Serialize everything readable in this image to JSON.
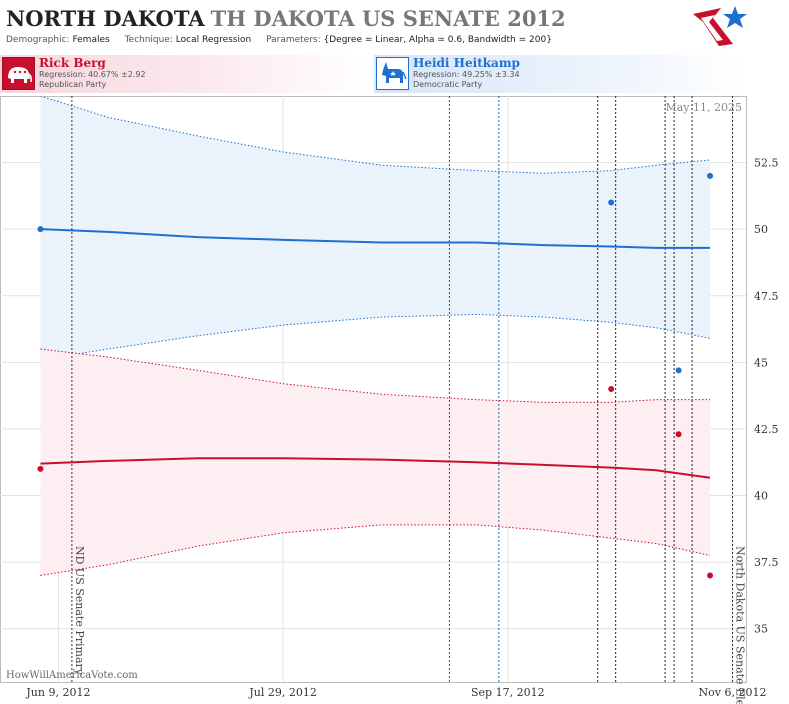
{
  "header": {
    "title_main": "NORTH DAKOTA",
    "title_sub": "TH DAKOTA US SENATE 2012",
    "demographic_label": "Demographic:",
    "demographic_value": "Females",
    "technique_label": "Technique:",
    "technique_value": "Local Regression",
    "parameters_label": "Parameters:",
    "parameters_value": "{Degree = Linear, Alpha = 0.6, Bandwidth = 200}"
  },
  "candidates": [
    {
      "name": "Rick Berg",
      "regression": "Regression: 40.67% ±2.92",
      "party": "Republican Party",
      "color": "#c8102e"
    },
    {
      "name": "Heidi Heitkamp",
      "regression": "Regression: 49.25% ±3.34",
      "party": "Democratic Party",
      "color": "#1e6fd0"
    }
  ],
  "watermark": "HowWillAmericaVote.com",
  "date_stamp": "May 11, 2025",
  "chart_data": {
    "type": "line",
    "x_axis": {
      "type": "date",
      "range": [
        "2012-05-27",
        "2012-11-09"
      ],
      "ticks": [
        {
          "value": "2012-06-09",
          "label": "Jun 9, 2012"
        },
        {
          "value": "2012-07-29",
          "label": "Jul 29, 2012"
        },
        {
          "value": "2012-09-17",
          "label": "Sep 17, 2012"
        },
        {
          "value": "2012-11-06",
          "label": "Nov 6, 2012"
        }
      ]
    },
    "y_axis": {
      "range": [
        33,
        55
      ],
      "ticks": [
        35,
        37.5,
        40,
        42.5,
        45,
        47.5,
        50,
        52.5
      ],
      "tick_labels": [
        "35",
        "37.5",
        "40",
        "42.5",
        "45",
        "47.5",
        "50",
        "52.5"
      ],
      "position": "right"
    },
    "grid": true,
    "events": [
      {
        "date": "2012-06-12",
        "label": "ND US Senate Primary"
      },
      {
        "date": "2012-11-06",
        "label": "North Dakota US Senate Election"
      }
    ],
    "poll_lines": [
      {
        "date": "2012-09-04",
        "color": "#b01848"
      },
      {
        "date": "2012-09-15",
        "color": "#1e6fa0"
      },
      {
        "date": "2012-10-07",
        "color": "#222222"
      },
      {
        "date": "2012-10-11",
        "color": "#222222"
      },
      {
        "date": "2012-10-22",
        "color": "#222222"
      },
      {
        "date": "2012-10-24",
        "color": "#222222"
      },
      {
        "date": "2012-10-28",
        "color": "#222222"
      }
    ],
    "series": [
      {
        "name": "Heidi Heitkamp",
        "color": "#1e6fd0",
        "band_fill": "#eaf2fc",
        "points": [
          {
            "x": "2012-06-05",
            "y": 50.0
          },
          {
            "x": "2012-10-10",
            "y": 51.0
          },
          {
            "x": "2012-10-25",
            "y": 44.7
          },
          {
            "x": "2012-11-01",
            "y": 52.0
          }
        ],
        "trend": [
          {
            "x": "2012-06-05",
            "y": 50.0,
            "lo": 45.1,
            "hi": 55.0
          },
          {
            "x": "2012-06-20",
            "y": 49.9,
            "lo": 45.5,
            "hi": 54.2
          },
          {
            "x": "2012-07-10",
            "y": 49.7,
            "lo": 46.0,
            "hi": 53.5
          },
          {
            "x": "2012-07-29",
            "y": 49.6,
            "lo": 46.4,
            "hi": 52.9
          },
          {
            "x": "2012-08-20",
            "y": 49.5,
            "lo": 46.7,
            "hi": 52.4
          },
          {
            "x": "2012-09-10",
            "y": 49.5,
            "lo": 46.8,
            "hi": 52.2
          },
          {
            "x": "2012-09-25",
            "y": 49.4,
            "lo": 46.7,
            "hi": 52.1
          },
          {
            "x": "2012-10-10",
            "y": 49.35,
            "lo": 46.5,
            "hi": 52.2
          },
          {
            "x": "2012-10-20",
            "y": 49.3,
            "lo": 46.3,
            "hi": 52.4
          },
          {
            "x": "2012-11-01",
            "y": 49.3,
            "lo": 45.9,
            "hi": 52.6
          }
        ]
      },
      {
        "name": "Rick Berg",
        "color": "#c8102e",
        "band_fill": "#fdeef1",
        "points": [
          {
            "x": "2012-06-05",
            "y": 41.0
          },
          {
            "x": "2012-10-10",
            "y": 44.0
          },
          {
            "x": "2012-10-25",
            "y": 42.3
          },
          {
            "x": "2012-11-01",
            "y": 37.0
          }
        ],
        "trend": [
          {
            "x": "2012-06-05",
            "y": 41.2,
            "lo": 37.0,
            "hi": 45.5
          },
          {
            "x": "2012-06-20",
            "y": 41.3,
            "lo": 37.4,
            "hi": 45.2
          },
          {
            "x": "2012-07-10",
            "y": 41.4,
            "lo": 38.1,
            "hi": 44.7
          },
          {
            "x": "2012-07-29",
            "y": 41.4,
            "lo": 38.6,
            "hi": 44.2
          },
          {
            "x": "2012-08-20",
            "y": 41.35,
            "lo": 38.9,
            "hi": 43.8
          },
          {
            "x": "2012-09-10",
            "y": 41.25,
            "lo": 38.9,
            "hi": 43.6
          },
          {
            "x": "2012-09-25",
            "y": 41.15,
            "lo": 38.7,
            "hi": 43.5
          },
          {
            "x": "2012-10-10",
            "y": 41.05,
            "lo": 38.4,
            "hi": 43.5
          },
          {
            "x": "2012-10-20",
            "y": 40.95,
            "lo": 38.2,
            "hi": 43.6
          },
          {
            "x": "2012-11-01",
            "y": 40.67,
            "lo": 37.75,
            "hi": 43.6
          }
        ]
      }
    ]
  }
}
